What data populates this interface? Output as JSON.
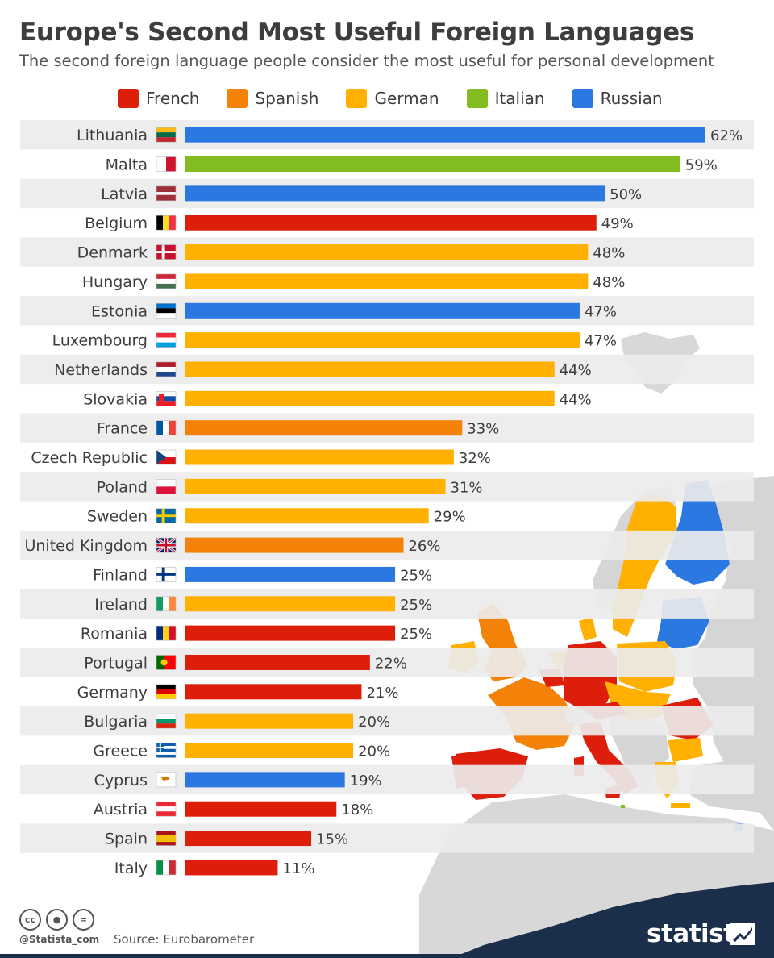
{
  "title": "Europe's Second Most Useful Foreign Languages",
  "subtitle": "The second foreign language people consider the most useful for personal development",
  "colors": {
    "French": "#dc1e0a",
    "Spanish": "#f58208",
    "German": "#ffb000",
    "Italian": "#82bc20",
    "Russian": "#2a78e0"
  },
  "legend": [
    {
      "label": "French",
      "color": "#dc1e0a"
    },
    {
      "label": "Spanish",
      "color": "#f58208"
    },
    {
      "label": "German",
      "color": "#ffb000"
    },
    {
      "label": "Italian",
      "color": "#82bc20"
    },
    {
      "label": "Russian",
      "color": "#2a78e0"
    }
  ],
  "chart_data": {
    "type": "bar",
    "orientation": "horizontal",
    "title": "Europe's Second Most Useful Foreign Languages",
    "subtitle": "The second foreign language people consider the most useful for personal development",
    "value_suffix": "%",
    "xlim": [
      0,
      62
    ],
    "categories": [
      "Lithuania",
      "Malta",
      "Latvia",
      "Belgium",
      "Denmark",
      "Hungary",
      "Estonia",
      "Luxembourg",
      "Netherlands",
      "Slovakia",
      "France",
      "Czech Republic",
      "Poland",
      "Sweden",
      "United Kingdom",
      "Finland",
      "Ireland",
      "Romania",
      "Portugal",
      "Germany",
      "Bulgaria",
      "Greece",
      "Cyprus",
      "Austria",
      "Spain",
      "Italy"
    ],
    "values": [
      62,
      59,
      50,
      49,
      48,
      48,
      47,
      47,
      44,
      44,
      33,
      32,
      31,
      29,
      26,
      25,
      25,
      25,
      22,
      21,
      20,
      20,
      19,
      18,
      15,
      11
    ],
    "languages": [
      "Russian",
      "Italian",
      "Russian",
      "French",
      "German",
      "German",
      "Russian",
      "German",
      "German",
      "German",
      "Spanish",
      "German",
      "German",
      "German",
      "Spanish",
      "Russian",
      "German",
      "French",
      "French",
      "French",
      "German",
      "German",
      "Russian",
      "French",
      "French",
      "French"
    ],
    "flags": [
      "lithuania-flag",
      "malta-flag",
      "latvia-flag",
      "belgium-flag",
      "denmark-flag",
      "hungary-flag",
      "estonia-flag",
      "luxembourg-flag",
      "netherlands-flag",
      "slovakia-flag",
      "france-flag",
      "czech-republic-flag",
      "poland-flag",
      "sweden-flag",
      "united-kingdom-flag",
      "finland-flag",
      "ireland-flag",
      "romania-flag",
      "portugal-flag",
      "germany-flag",
      "bulgaria-flag",
      "greece-flag",
      "cyprus-flag",
      "austria-flag",
      "spain-flag",
      "italy-flag"
    ]
  },
  "footer": {
    "handle": "@Statista_com",
    "source": "Source: Eurobarometer",
    "brand": "statista",
    "cc_icons": [
      "cc",
      "by",
      "nd"
    ]
  }
}
